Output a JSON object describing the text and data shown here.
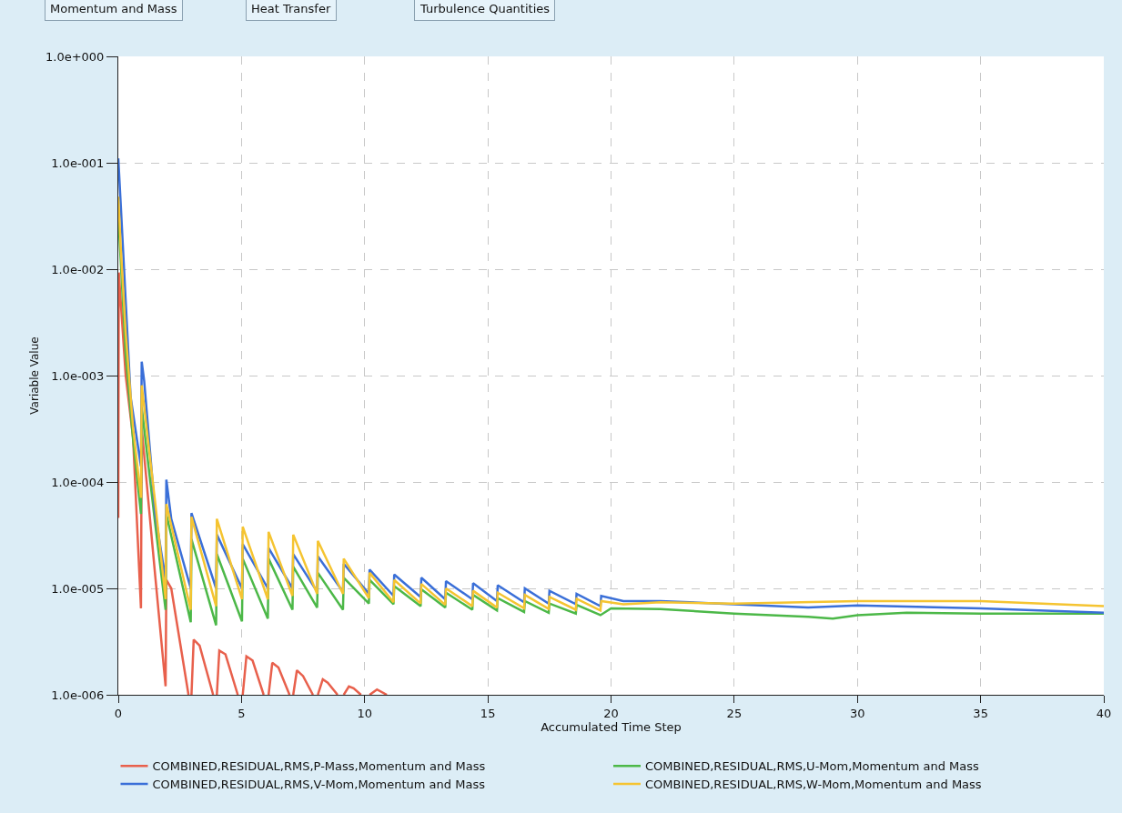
{
  "chart_data": {
    "type": "line",
    "xlabel": "Accumulated Time Step",
    "ylabel": "Variable Value",
    "annotations": [
      "Momentum and Mass",
      "Heat Transfer",
      "Turbulence Quantities"
    ],
    "log": "y",
    "grid": true,
    "legend": "bottom",
    "marker": "none",
    "line_style": "solid",
    "xlim": [
      0,
      40
    ],
    "xticks": [
      0,
      5,
      10,
      15,
      20,
      25,
      30,
      35,
      40
    ],
    "ylim": [
      1e-06,
      1
    ],
    "yticks": [
      {
        "value": 1,
        "label": "1.0e+000"
      },
      {
        "value": 0.1,
        "label": "1.0e-001"
      },
      {
        "value": 0.01,
        "label": "1.0e-002"
      },
      {
        "value": 0.001,
        "label": "1.0e-003"
      },
      {
        "value": 0.0001,
        "label": "1.0e-004"
      },
      {
        "value": 1e-05,
        "label": "1.0e-005"
      },
      {
        "value": 1e-06,
        "label": "1.0e-006"
      }
    ],
    "series": [
      {
        "name": "COMBINED,RESIDUAL,RMS,P-Mass,Momentum and Mass",
        "color": "#e8604c",
        "x": [
          0,
          0.02,
          0.3,
          0.6,
          0.92,
          0.95,
          1.5,
          1.92,
          1.95,
          2.15,
          2.85,
          2.9,
          2.97,
          3.06,
          3.3,
          3.85,
          3.9,
          4.0,
          4.1,
          4.35,
          4.85,
          4.9,
          5.05,
          5.2,
          5.45,
          5.9,
          5.95,
          6.1,
          6.25,
          6.5,
          6.95,
          7.0,
          7.1,
          7.25,
          7.5,
          7.9,
          7.95,
          8.1,
          8.3,
          8.5,
          8.9,
          8.95,
          9.15,
          9.36,
          9.55,
          9.85,
          9.9,
          10.2,
          10.5,
          10.9
        ],
        "values": [
          4.6e-05,
          0.0093,
          0.001,
          0.00026,
          6.5e-06,
          0.00032,
          1.3e-05,
          1.2e-06,
          1.2e-05,
          1e-05,
          1e-06,
          null,
          1e-06,
          3.3e-06,
          2.9e-06,
          1e-06,
          null,
          1e-06,
          2.6e-06,
          2.4e-06,
          1e-06,
          null,
          1e-06,
          2.3e-06,
          2.1e-06,
          1e-06,
          null,
          1e-06,
          2e-06,
          1.8e-06,
          1e-06,
          null,
          1e-06,
          1.7e-06,
          1.5e-06,
          1e-06,
          null,
          1e-06,
          1.4e-06,
          1.3e-06,
          1e-06,
          null,
          1e-06,
          1.2e-06,
          1.15e-06,
          1e-06,
          null,
          1e-06,
          1.12e-06,
          1e-06
        ]
      },
      {
        "name": "COMBINED,RESIDUAL,RMS,U-Mom,Momentum and Mass",
        "color": "#4cb848",
        "x": [
          0,
          0.3,
          0.6,
          0.92,
          0.95,
          1.5,
          1.92,
          1.95,
          2.94,
          2.97,
          3.97,
          4.0,
          5.02,
          5.05,
          6.07,
          6.1,
          7.07,
          7.1,
          8.07,
          8.1,
          9.12,
          9.15,
          10.17,
          10.2,
          11.17,
          11.2,
          12.27,
          12.3,
          13.27,
          13.3,
          14.37,
          14.4,
          15.37,
          15.4,
          16.47,
          16.5,
          17.47,
          17.5,
          18.57,
          18.6,
          19.57,
          20,
          22,
          25,
          28,
          29,
          30,
          32,
          35,
          40
        ],
        "values": [
          0.032,
          0.0016,
          0.00025,
          5e-05,
          0.0005,
          4e-05,
          6.3e-06,
          5e-05,
          4.8e-06,
          2.9e-05,
          4.5e-06,
          2.1e-05,
          4.9e-06,
          1.9e-05,
          5.2e-06,
          1.9e-05,
          6.3e-06,
          1.6e-05,
          6.6e-06,
          1.4e-05,
          6.3e-06,
          1.26e-05,
          7.2e-06,
          1.2e-05,
          7.1e-06,
          1.05e-05,
          6.8e-06,
          9.8e-06,
          6.6e-06,
          9.1e-06,
          6.3e-06,
          8.7e-06,
          6.2e-06,
          8.1e-06,
          6e-06,
          7.6e-06,
          5.9e-06,
          7.2e-06,
          5.8e-06,
          7e-06,
          5.6e-06,
          6.5e-06,
          6.4e-06,
          5.8e-06,
          5.4e-06,
          5.2e-06,
          5.6e-06,
          5.9e-06,
          5.8e-06,
          5.8e-06
        ]
      },
      {
        "name": "COMBINED,RESIDUAL,RMS,V-Mom,Momentum and Mass",
        "color": "#3a6fd8",
        "x": [
          0,
          0.1,
          0.3,
          0.5,
          0.92,
          0.95,
          1.05,
          1.5,
          1.92,
          1.95,
          2.15,
          2.94,
          2.97,
          3.97,
          4.0,
          5.02,
          5.05,
          6.07,
          6.1,
          7.07,
          7.1,
          8.07,
          8.1,
          9.12,
          9.15,
          10.17,
          10.2,
          11.17,
          11.2,
          12.27,
          12.3,
          13.27,
          13.3,
          14.37,
          14.4,
          15.37,
          15.4,
          16.47,
          16.5,
          17.47,
          17.5,
          18.57,
          18.6,
          19.57,
          19.6,
          20.5,
          22,
          25,
          28,
          30,
          35,
          40
        ],
        "values": [
          0.11,
          0.04,
          0.005,
          0.00063,
          0.00014,
          0.00135,
          0.00089,
          5e-05,
          1.2e-05,
          0.000105,
          4.5e-05,
          1e-05,
          5.1e-05,
          1e-05,
          3.2e-05,
          1e-05,
          2.6e-05,
          1e-05,
          2.4e-05,
          1e-05,
          2.1e-05,
          9.3e-06,
          2e-05,
          9.3e-06,
          1.7e-05,
          8.9e-06,
          1.5e-05,
          8.5e-06,
          1.35e-05,
          8.3e-06,
          1.26e-05,
          7.9e-06,
          1.17e-05,
          7.9e-06,
          1.12e-05,
          7.6e-06,
          1.07e-05,
          7.4e-06,
          1e-05,
          7.2e-06,
          9.5e-06,
          7.1e-06,
          8.9e-06,
          6.8e-06,
          8.5e-06,
          7.6e-06,
          7.6e-06,
          7.1e-06,
          6.6e-06,
          6.9e-06,
          6.5e-06,
          5.9e-06
        ]
      },
      {
        "name": "COMBINED,RESIDUAL,RMS,W-Mom,Momentum and Mass",
        "color": "#f5c431",
        "x": [
          0,
          0.1,
          0.3,
          0.6,
          0.92,
          0.95,
          1.5,
          1.92,
          1.95,
          2.94,
          2.97,
          3.97,
          4.0,
          5.02,
          5.05,
          6.07,
          6.1,
          7.07,
          7.1,
          8.07,
          8.1,
          9.12,
          9.15,
          10.17,
          10.2,
          11.17,
          11.2,
          12.27,
          12.3,
          13.27,
          13.3,
          14.37,
          14.4,
          15.37,
          15.4,
          16.47,
          16.5,
          17.47,
          17.5,
          18.57,
          18.6,
          19.57,
          19.6,
          20.5,
          22,
          25,
          30,
          35,
          40
        ],
        "values": [
          0.048,
          0.016,
          0.0025,
          0.00032,
          7.1e-05,
          0.00081,
          6.3e-05,
          7.9e-06,
          6.2e-05,
          6.3e-06,
          4.7e-05,
          6.8e-06,
          4.5e-05,
          7.9e-06,
          3.8e-05,
          7.9e-06,
          3.4e-05,
          8.5e-06,
          3.2e-05,
          8.9e-06,
          2.8e-05,
          8.9e-06,
          1.9e-05,
          8.1e-06,
          1.4e-05,
          7.4e-06,
          1.2e-05,
          7.2e-06,
          1.1e-05,
          7e-06,
          1e-05,
          6.8e-06,
          9.5e-06,
          6.6e-06,
          9.1e-06,
          6.5e-06,
          8.7e-06,
          6.4e-06,
          8.3e-06,
          6.3e-06,
          8e-06,
          6.2e-06,
          7.6e-06,
          7.1e-06,
          7.4e-06,
          7.2e-06,
          7.6e-06,
          7.6e-06,
          6.8e-06
        ]
      }
    ]
  }
}
